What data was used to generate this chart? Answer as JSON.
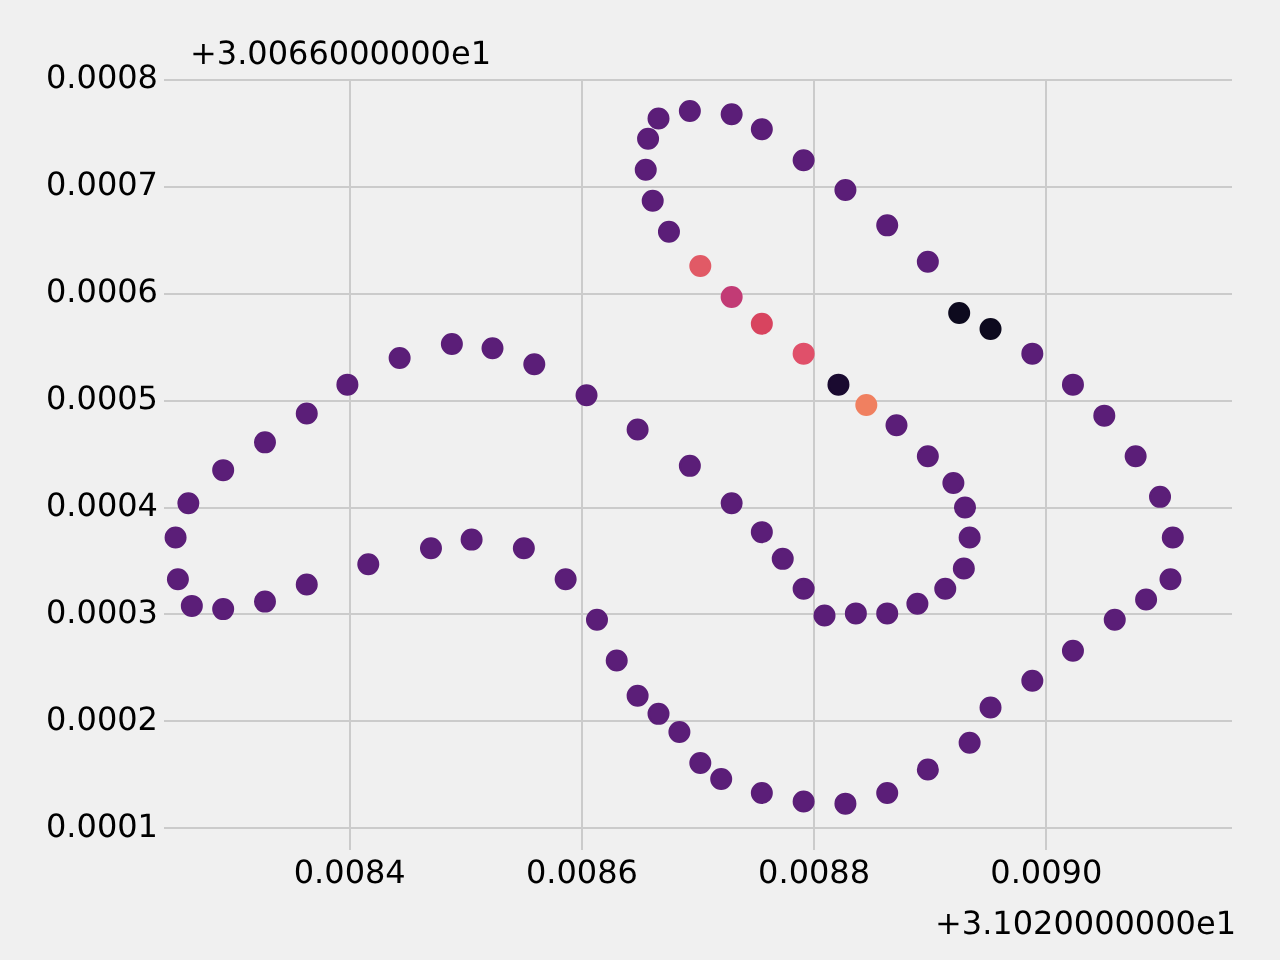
{
  "chart_data": {
    "type": "scatter",
    "annotations": [
      "+3.0066000000e1",
      "+3.1020000000e1"
    ],
    "xlim": [
      0.00824,
      0.00916
    ],
    "xticks": [
      0.0084,
      0.0086,
      0.0088,
      {
        "value": 0.009,
        "label": "0.0090"
      }
    ],
    "ylim": [
      8e-05,
      0.0008
    ],
    "yticks": [
      0.0001,
      0.0002,
      0.0003,
      0.0004,
      0.0005,
      0.0006,
      0.0007,
      0.0008
    ],
    "grid": true,
    "legend": false,
    "marker": "circle",
    "series": [
      {
        "x": [
          0.008657,
          0.008666,
          0.008693,
          0.008729,
          0.008755,
          0.008791,
          0.008827,
          0.008863,
          0.008898,
          0.008925,
          0.008952,
          0.008988,
          0.009023,
          0.00905,
          0.009077,
          0.009098,
          0.009109,
          0.009107,
          0.009086,
          0.009059,
          0.009023,
          0.008988,
          0.008952,
          0.008934,
          0.008898,
          0.008863,
          0.008827,
          0.008791,
          0.008755,
          0.00872,
          0.008702,
          0.008684,
          0.008666,
          0.008648,
          0.00863,
          0.008613,
          0.008586,
          0.00855,
          0.008505,
          0.00847,
          0.008416,
          0.008363,
          0.008327,
          0.008291,
          0.008264,
          0.008252,
          0.00825,
          0.008261,
          0.008291,
          0.008327,
          0.008363,
          0.008398,
          0.008443,
          0.008488,
          0.008523,
          0.008559,
          0.008604,
          0.008648,
          0.008693,
          0.008729,
          0.008755,
          0.008773,
          0.008791,
          0.008809,
          0.008836,
          0.008863,
          0.008889,
          0.008913,
          0.008929,
          0.008934,
          0.00893,
          0.00892,
          0.008898,
          0.008871,
          0.008845,
          0.008821,
          0.008791,
          0.008755,
          0.008729,
          0.008702,
          0.008675,
          0.008661,
          0.008655
        ],
        "values": [
          0.000745,
          0.000764,
          0.000771,
          0.000768,
          0.000754,
          0.000725,
          0.000697,
          0.000664,
          0.00063,
          0.000582,
          0.000567,
          0.000544,
          0.000515,
          0.000486,
          0.000448,
          0.00041,
          0.000372,
          0.000333,
          0.000314,
          0.000295,
          0.000266,
          0.000238,
          0.000213,
          0.00018,
          0.000155,
          0.000133,
          0.000123,
          0.000125,
          0.000133,
          0.000146,
          0.000161,
          0.00019,
          0.000207,
          0.000224,
          0.000257,
          0.000295,
          0.000333,
          0.000362,
          0.00037,
          0.000362,
          0.000347,
          0.000328,
          0.000312,
          0.000305,
          0.000308,
          0.000333,
          0.000372,
          0.000404,
          0.000435,
          0.000461,
          0.000488,
          0.000515,
          0.00054,
          0.000553,
          0.000549,
          0.000534,
          0.000505,
          0.000473,
          0.000439,
          0.000404,
          0.000377,
          0.000352,
          0.000324,
          0.000299,
          0.000301,
          0.000301,
          0.00031,
          0.000324,
          0.000343,
          0.000372,
          0.0004,
          0.000423,
          0.000448,
          0.000477,
          0.000496,
          0.000515,
          0.000544,
          0.000572,
          0.000597,
          0.000626,
          0.000658,
          0.000687,
          0.000716
        ],
        "colors": [
          "#5b1e78",
          "#5b1e78",
          "#5b1e78",
          "#5b1e78",
          "#5b1e78",
          "#5b1e78",
          "#5b1e78",
          "#5b1e78",
          "#5b1e78",
          "#0d0a1e",
          "#0d0a1e",
          "#5b1e78",
          "#5b1e78",
          "#5b1e78",
          "#5b1e78",
          "#5b1e78",
          "#5b1e78",
          "#5b1e78",
          "#5b1e78",
          "#5b1e78",
          "#5b1e78",
          "#5b1e78",
          "#5b1e78",
          "#5b1e78",
          "#5b1e78",
          "#5b1e78",
          "#5b1e78",
          "#5b1e78",
          "#5b1e78",
          "#5b1e78",
          "#5b1e78",
          "#5b1e78",
          "#5b1e78",
          "#5b1e78",
          "#5b1e78",
          "#5b1e78",
          "#5b1e78",
          "#5b1e78",
          "#5b1e78",
          "#5b1e78",
          "#5b1e78",
          "#5b1e78",
          "#5b1e78",
          "#5b1e78",
          "#5b1e78",
          "#5b1e78",
          "#5b1e78",
          "#5b1e78",
          "#5b1e78",
          "#5b1e78",
          "#5b1e78",
          "#5b1e78",
          "#5b1e78",
          "#5b1e78",
          "#5b1e78",
          "#5b1e78",
          "#5b1e78",
          "#5b1e78",
          "#5b1e78",
          "#5b1e78",
          "#5b1e78",
          "#5b1e78",
          "#5b1e78",
          "#5b1e78",
          "#5b1e78",
          "#5b1e78",
          "#5b1e78",
          "#5b1e78",
          "#5b1e78",
          "#5b1e78",
          "#5b1e78",
          "#5b1e78",
          "#5b1e78",
          "#5b1e78",
          "#f08060",
          "#1a0a30",
          "#e0506a",
          "#d8445f",
          "#c23b75",
          "#e15a66",
          "#5b1e78",
          "#5b1e78",
          "#5b1e78"
        ]
      }
    ]
  }
}
